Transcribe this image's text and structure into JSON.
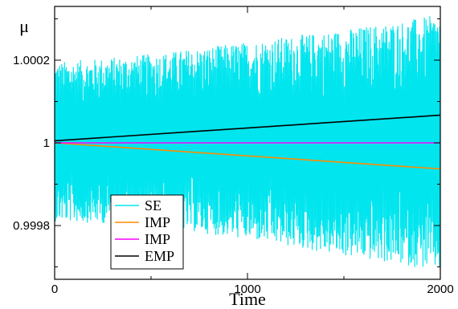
{
  "chart_data": {
    "type": "line",
    "xlabel": "Time",
    "ylabel": "μ",
    "xlim": [
      0,
      2000
    ],
    "ylim": [
      0.99967,
      1.00033
    ],
    "xticks": [
      0,
      1000,
      2000
    ],
    "xtick_labels": [
      "0",
      "1000",
      "2000"
    ],
    "yticks": [
      0.9998,
      1.0,
      1.0002
    ],
    "ytick_labels": [
      "0.9998",
      "1",
      "1.0002"
    ],
    "grid": false,
    "legend_position": "bottom-left",
    "series": [
      {
        "name": "SE",
        "color": "#00e5ee",
        "style": "oscillating band",
        "x": [
          0,
          500,
          1000,
          1500,
          2000
        ],
        "upper_envelope": [
          1.000195,
          1.000215,
          1.000245,
          1.000275,
          1.00031
        ],
        "lower_envelope": [
          0.99981,
          0.9998,
          0.999765,
          0.999725,
          0.99969
        ]
      },
      {
        "name": "IMP",
        "color": "#ff8c00",
        "x": [
          0,
          2000
        ],
        "y": [
          1.0,
          0.999937
        ]
      },
      {
        "name": "IMP",
        "color": "#ff00ff",
        "x": [
          0,
          2000
        ],
        "y": [
          1.0,
          1.0
        ]
      },
      {
        "name": "EMP",
        "color": "#000000",
        "x": [
          0,
          2000
        ],
        "y": [
          1.000005,
          1.000067
        ]
      }
    ]
  }
}
